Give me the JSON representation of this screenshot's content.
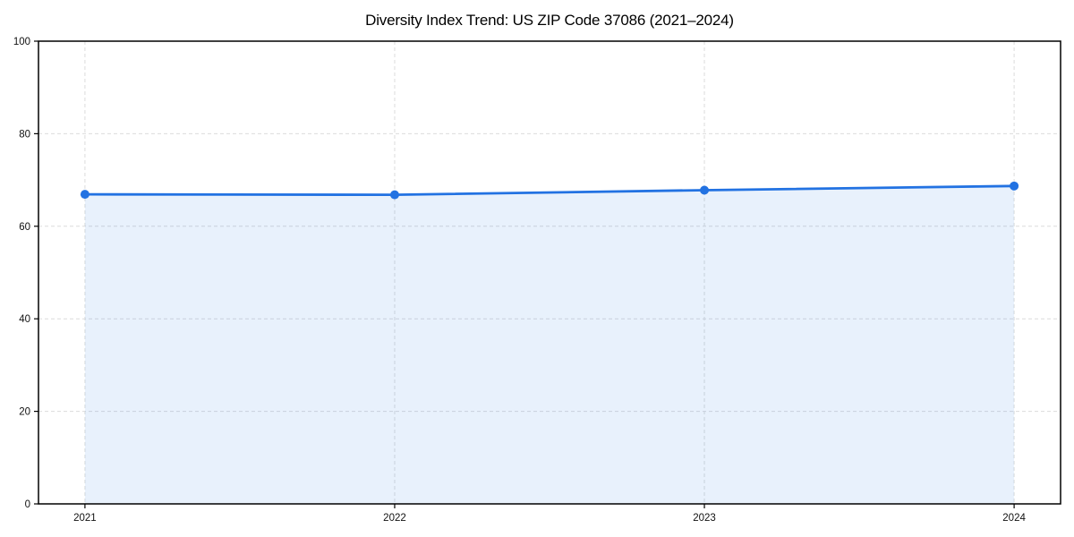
{
  "page": {
    "background": "#ffffff"
  },
  "chart_data": {
    "type": "area",
    "title": "Diversity Index Trend: US ZIP Code 37086 (2021–2024)",
    "x": [
      2021,
      2022,
      2023,
      2024
    ],
    "xtick_labels": [
      "2021",
      "2022",
      "2023",
      "2024"
    ],
    "series": [
      {
        "name": "Diversity Index",
        "values": [
          66.9,
          66.8,
          67.8,
          68.7
        ]
      }
    ],
    "xlabel": "",
    "ylabel": "",
    "ylim": [
      0,
      100
    ],
    "yticks": [
      0,
      20,
      40,
      60,
      80,
      100
    ],
    "grid": true,
    "legend": "none",
    "colors": {
      "line": "#2272e2",
      "marker": "#2272e2",
      "fill": "#2272e2",
      "fill_opacity": 0.1,
      "grid": "#dcdcdc",
      "axis": "#000000",
      "text": "#111111"
    }
  }
}
